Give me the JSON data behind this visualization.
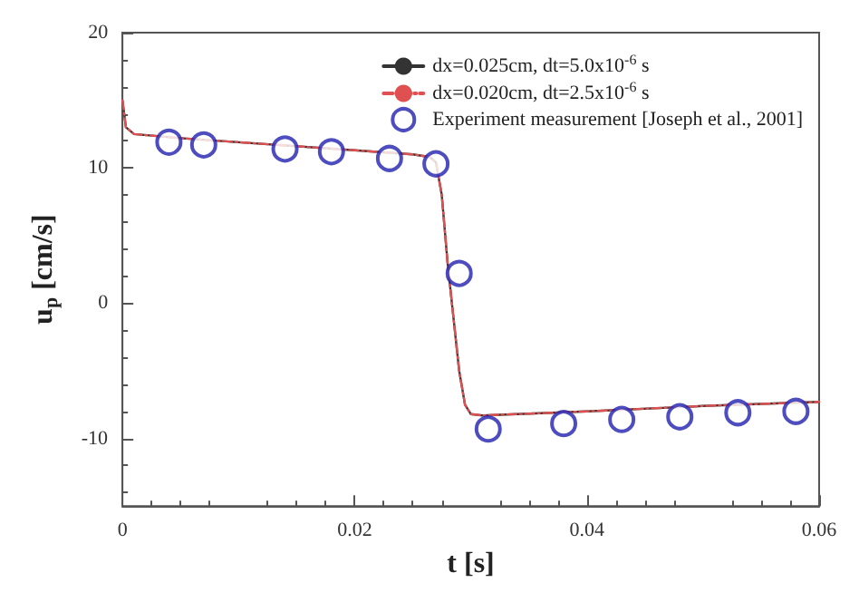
{
  "chart_data": {
    "type": "line",
    "xlabel": "t [s]",
    "ylabel": "u$_{p}$ [cm/s]",
    "xlim": [
      0,
      0.06
    ],
    "xticks": [
      0,
      0.02,
      0.04,
      0.06
    ],
    "ylim": [
      -15,
      20
    ],
    "yticks": [
      -10,
      0,
      10,
      20
    ],
    "grid": false,
    "legend": "top right",
    "series": [
      {
        "name": "dx=0.025cm, dt=5.0x10$^{-6}$ s",
        "color": "#333333",
        "line_style": "solid",
        "marker": "none",
        "x": [
          0,
          0.0003,
          0.001,
          0.005,
          0.01,
          0.02,
          0.025,
          0.0265,
          0.027,
          0.0275,
          0.028,
          0.0285,
          0.029,
          0.0295,
          0.03,
          0.031,
          0.04,
          0.05,
          0.06
        ],
        "values": [
          15,
          13,
          12.5,
          12.2,
          11.9,
          11.3,
          11,
          10.8,
          10.4,
          8,
          3,
          -1,
          -5,
          -7.5,
          -8.2,
          -8.3,
          -8,
          -7.6,
          -7.3
        ]
      },
      {
        "name": "dx=0.020cm, dt=2.5x10$^{-6}$ s",
        "color": "#e05050",
        "line_style": "dashed",
        "marker": "none",
        "x": [
          0,
          0.0003,
          0.001,
          0.005,
          0.01,
          0.02,
          0.025,
          0.0265,
          0.027,
          0.0275,
          0.028,
          0.0285,
          0.029,
          0.0295,
          0.03,
          0.031,
          0.04,
          0.05,
          0.06
        ],
        "values": [
          15,
          13,
          12.5,
          12.2,
          11.9,
          11.3,
          11,
          10.8,
          10.4,
          8,
          3,
          -1,
          -5,
          -7.5,
          -8.2,
          -8.3,
          -8,
          -7.6,
          -7.3
        ]
      },
      {
        "name": "Experiment measurement [Joseph et al., 2001]",
        "type": "scatter",
        "color": "#2020b0",
        "marker": "circle",
        "x": [
          0.004,
          0.007,
          0.014,
          0.018,
          0.023,
          0.027,
          0.029,
          0.0315,
          0.038,
          0.043,
          0.048,
          0.053,
          0.058
        ],
        "values": [
          11.9,
          11.7,
          11.4,
          11.2,
          10.7,
          10.3,
          2.2,
          -9.3,
          -8.9,
          -8.6,
          -8.4,
          -8.1,
          -8.0
        ]
      }
    ]
  }
}
